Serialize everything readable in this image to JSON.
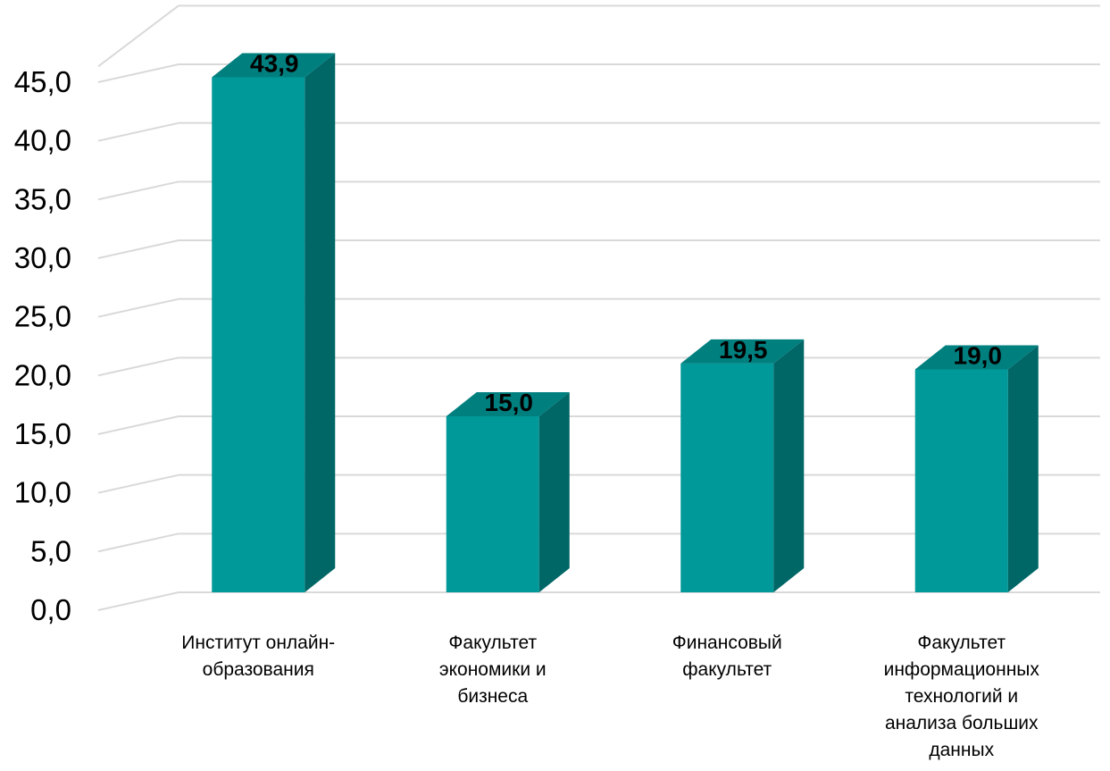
{
  "chart_data": {
    "type": "bar",
    "style": "3d-column",
    "categories": [
      [
        "Институт онлайн-",
        "образования"
      ],
      [
        "Факультет",
        "экономики и",
        "бизнеса"
      ],
      [
        "Финансовый",
        "факультет"
      ],
      [
        "Факультет",
        "информационных",
        "технологий и",
        "анализа больших",
        "данных"
      ]
    ],
    "values": [
      43.9,
      15.0,
      19.5,
      19.0
    ],
    "value_labels": [
      "43,9",
      "15,0",
      "19,5",
      "19,0"
    ],
    "title": "",
    "xlabel": "",
    "ylabel": "",
    "ylim": [
      0,
      45
    ],
    "y_ticks": [
      "0,0",
      "5,0",
      "10,0",
      "15,0",
      "20,0",
      "25,0",
      "30,0",
      "35,0",
      "40,0",
      "45,0"
    ],
    "grid": true,
    "legend": "none",
    "colors": {
      "bar_front": "#009999",
      "bar_side": "#006666",
      "bar_top": "#007f7f",
      "grid": "#d9d9d9"
    }
  }
}
